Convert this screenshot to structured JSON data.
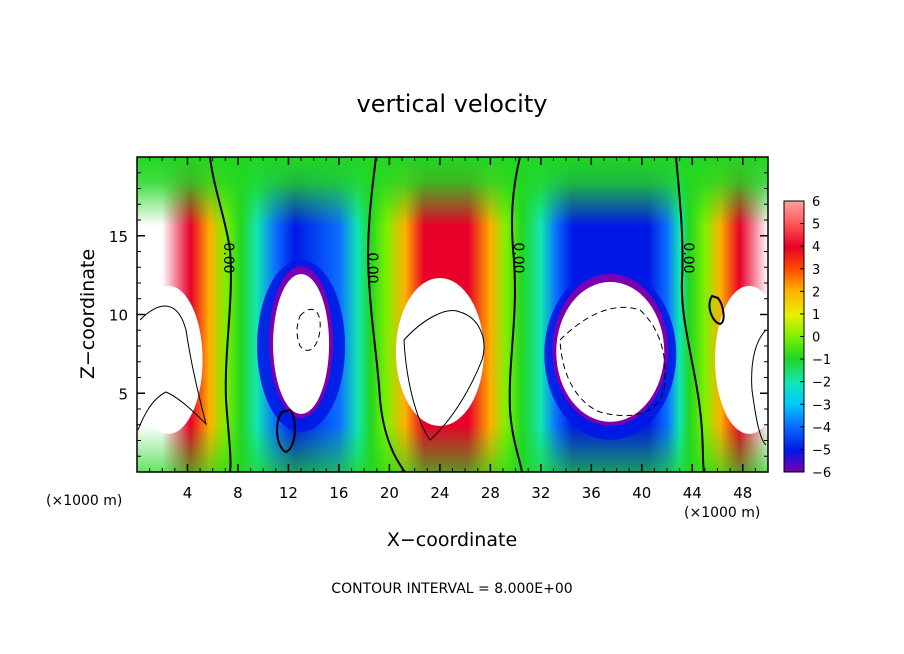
{
  "chart_data": {
    "type": "heatmap",
    "title": "vertical velocity",
    "xlabel": "X−coordinate",
    "ylabel": "Z−coordinate",
    "x_unit": "(×1000 m)",
    "z_unit": "(×1000 m)",
    "xlim": [
      0,
      50
    ],
    "ylim": [
      0,
      20
    ],
    "x_ticks": [
      4,
      8,
      12,
      16,
      20,
      24,
      28,
      32,
      36,
      40,
      44,
      48
    ],
    "y_ticks": [
      5,
      10,
      15
    ],
    "x_tick_labels": [
      "4",
      "8",
      "12",
      "16",
      "20",
      "24",
      "28",
      "32",
      "36",
      "40",
      "44",
      "48"
    ],
    "y_tick_labels": [
      "5",
      "10",
      "15"
    ],
    "colorbar": {
      "ticks": [
        6,
        5,
        4,
        3,
        2,
        1,
        0,
        -1,
        -2,
        -3,
        -4,
        -5,
        -6
      ],
      "tick_labels": [
        "6",
        "5",
        "4",
        "3",
        "2",
        "1",
        "0",
        "−1",
        "−2",
        "−3",
        "−4",
        "−5",
        "−6"
      ],
      "range": [
        -6,
        6
      ],
      "over_range_color": "#ffffff",
      "colors": [
        "#7a00b0",
        "#2a00c0",
        "#0018e6",
        "#0a6eff",
        "#00c8ff",
        "#12e6b4",
        "#22d622",
        "#7ef000",
        "#e8f000",
        "#ffb000",
        "#ff4a00",
        "#e80028",
        "#ffa0a0"
      ]
    },
    "cells": [
      {
        "x": 2.5,
        "z": 7.5,
        "sign": 1,
        "label": "updraft"
      },
      {
        "x": 13.0,
        "z": 8.0,
        "sign": -1,
        "label": "downdraft"
      },
      {
        "x": 24.0,
        "z": 8.0,
        "sign": 1,
        "label": "updraft"
      },
      {
        "x": 37.5,
        "z": 7.5,
        "sign": -1,
        "label": "downdraft"
      },
      {
        "x": 48.5,
        "z": 7.5,
        "sign": 1,
        "label": "updraft"
      }
    ],
    "zero_contour_labels": [
      "0.00",
      "0.00",
      "0.00",
      "0.00"
    ],
    "contour_interval": "CONTOUR INTERVAL = 8.000E+00"
  }
}
